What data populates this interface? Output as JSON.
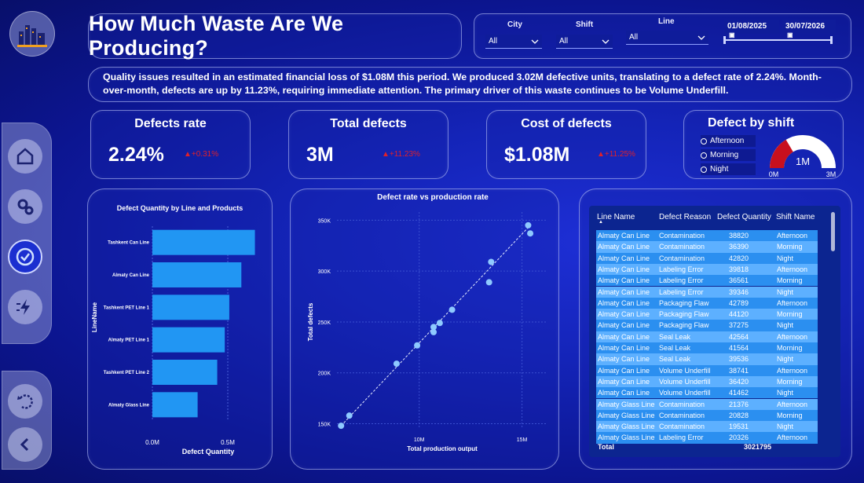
{
  "title": "How Much Waste Are We Producing?",
  "filters": {
    "city_label": "City",
    "city_value": "All",
    "shift_label": "Shift",
    "shift_value": "All",
    "line_label": "Line",
    "line_value": "All",
    "date_start": "01/08/2025",
    "date_end": "30/07/2026"
  },
  "summary": "Quality issues resulted in an estimated financial loss of $1.08M this period. We produced 3.02M defective units, translating to a defect rate of 2.24%. Month-over-month, defects are up by 11.23%, requiring immediate attention. The primary driver of this waste continues to be Volume Underfill.",
  "kpis": {
    "rate": {
      "title": "Defects rate",
      "value": "2.24%",
      "delta": "▲+0.31%"
    },
    "total": {
      "title": "Total defects",
      "value": "3M",
      "delta": "▲+11.23%"
    },
    "cost": {
      "title": "Cost of defects",
      "value": "$1.08M",
      "delta": "▲+11.25%"
    }
  },
  "shift": {
    "title": "Defect by shift",
    "options": [
      "Afternoon",
      "Morning",
      "Night"
    ],
    "gauge_value": "1M",
    "gauge_min": "0M",
    "gauge_max": "3M",
    "gauge_fraction": 0.33
  },
  "colors": {
    "bar": "#2196f3",
    "negative": "#e0202a",
    "gauge": "#c8101e",
    "point": "#8ec9ff"
  },
  "chart_data": [
    {
      "type": "bar",
      "title": "Defect Quantity by Line and Products",
      "categories": [
        "Tashkent Can Line",
        "Almaty Can Line",
        "Tashkent PET Line 1",
        "Almaty PET Line 1",
        "Tashkent PET Line 2",
        "Almaty Glass Line"
      ],
      "values": [
        0.68,
        0.59,
        0.51,
        0.48,
        0.43,
        0.3
      ],
      "xlabel": "Defect Quantity",
      "ylabel": "LineName",
      "xticks": [
        "0.0M",
        "0.5M"
      ],
      "xlim": [
        0,
        0.75
      ]
    },
    {
      "type": "scatter",
      "title": "Defect rate vs production rate",
      "xlabel": "Total production output",
      "ylabel": "Total defects",
      "xticks": [
        "10M",
        "15M"
      ],
      "yticks": [
        "150K",
        "200K",
        "250K",
        "300K",
        "350K"
      ],
      "xlim": [
        6,
        16.2
      ],
      "ylim": [
        145,
        358
      ],
      "x": [
        6.2,
        6.6,
        8.9,
        9.9,
        10.7,
        10.7,
        11.0,
        11.6,
        13.4,
        13.5,
        15.3,
        15.4
      ],
      "y": [
        148,
        158,
        209,
        227,
        240,
        245,
        249,
        262,
        289,
        309,
        345,
        337
      ]
    }
  ],
  "table": {
    "headers": [
      "Line Name",
      "Defect Reason",
      "Defect Quantity",
      "Shift Name"
    ],
    "rows": [
      [
        "Almaty Can Line",
        "Contamination",
        "38820",
        "Afternoon"
      ],
      [
        "Almaty Can Line",
        "Contamination",
        "36390",
        "Morning"
      ],
      [
        "Almaty Can Line",
        "Contamination",
        "42820",
        "Night"
      ],
      [
        "Almaty Can Line",
        "Labeling Error",
        "39818",
        "Afternoon"
      ],
      [
        "Almaty Can Line",
        "Labeling Error",
        "36561",
        "Morning"
      ],
      [
        "Almaty Can Line",
        "Labeling Error",
        "39346",
        "Night"
      ],
      [
        "Almaty Can Line",
        "Packaging Flaw",
        "42789",
        "Afternoon"
      ],
      [
        "Almaty Can Line",
        "Packaging Flaw",
        "44120",
        "Morning"
      ],
      [
        "Almaty Can Line",
        "Packaging Flaw",
        "37275",
        "Night"
      ],
      [
        "Almaty Can Line",
        "Seal Leak",
        "42564",
        "Afternoon"
      ],
      [
        "Almaty Can Line",
        "Seal Leak",
        "41564",
        "Morning"
      ],
      [
        "Almaty Can Line",
        "Seal Leak",
        "39536",
        "Night"
      ],
      [
        "Almaty Can Line",
        "Volume Underfill",
        "38741",
        "Afternoon"
      ],
      [
        "Almaty Can Line",
        "Volume Underfill",
        "36420",
        "Morning"
      ],
      [
        "Almaty Can Line",
        "Volume Underfill",
        "41462",
        "Night"
      ],
      [
        "Almaty Glass Line",
        "Contamination",
        "21376",
        "Afternoon"
      ],
      [
        "Almaty Glass Line",
        "Contamination",
        "20828",
        "Morning"
      ],
      [
        "Almaty Glass Line",
        "Contamination",
        "19531",
        "Night"
      ],
      [
        "Almaty Glass Line",
        "Labeling Error",
        "20326",
        "Afternoon"
      ]
    ],
    "total_label": "Total",
    "total_value": "3021795"
  }
}
